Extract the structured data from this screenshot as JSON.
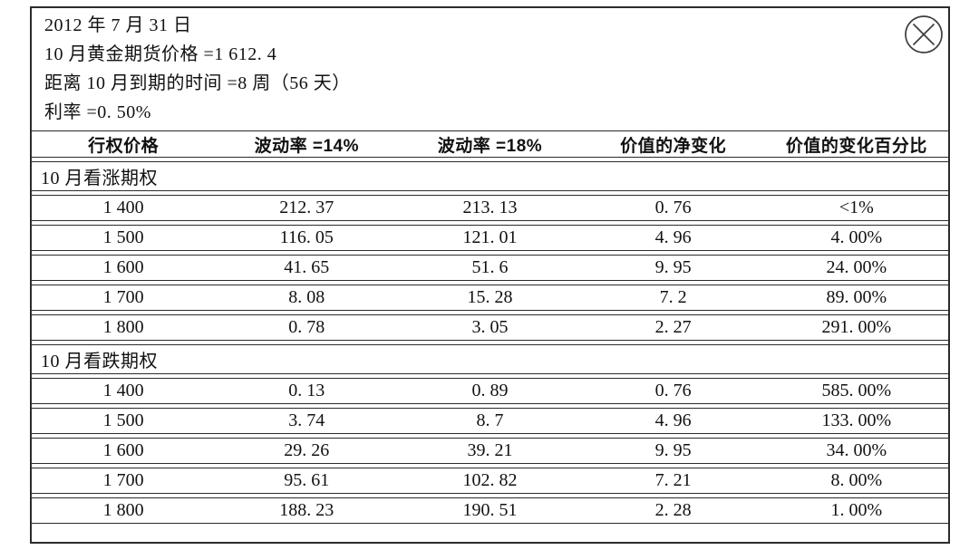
{
  "panel": {
    "info_lines": [
      "2012 年 7 月 31 日",
      "10 月黄金期货价格 =1 612. 4",
      "距离 10 月到期的时间 =8 周（56 天）",
      "利率 =0. 50%"
    ]
  },
  "icons": {
    "close": "circle-x"
  },
  "table": {
    "columns": [
      "行权价格",
      "波动率 =14%",
      "波动率 =18%",
      "价值的净变化",
      "价值的变化百分比"
    ],
    "sections": [
      {
        "label": "10 月看涨期权",
        "rows": [
          [
            "1 400",
            "212. 37",
            "213. 13",
            "0. 76",
            "<1%"
          ],
          [
            "1 500",
            "116. 05",
            "121. 01",
            "4. 96",
            "4. 00%"
          ],
          [
            "1 600",
            "41. 65",
            "51. 6",
            "9. 95",
            "24. 00%"
          ],
          [
            "1 700",
            "8. 08",
            "15. 28",
            "7. 2",
            "89. 00%"
          ],
          [
            "1 800",
            "0. 78",
            "3. 05",
            "2. 27",
            "291. 00%"
          ]
        ]
      },
      {
        "label": "10 月看跌期权",
        "rows": [
          [
            "1 400",
            "0. 13",
            "0. 89",
            "0. 76",
            "585. 00%"
          ],
          [
            "1 500",
            "3. 74",
            "8. 7",
            "4. 96",
            "133. 00%"
          ],
          [
            "1 600",
            "29. 26",
            "39. 21",
            "9. 95",
            "34. 00%"
          ],
          [
            "1 700",
            "95. 61",
            "102. 82",
            "7. 21",
            "8. 00%"
          ],
          [
            "1 800",
            "188. 23",
            "190. 51",
            "2. 28",
            "1. 00%"
          ]
        ]
      }
    ]
  },
  "colors": {
    "border": "#2b2b2b",
    "text": "#111111",
    "background": "#ffffff",
    "icon_stroke": "#3d3d3d"
  }
}
